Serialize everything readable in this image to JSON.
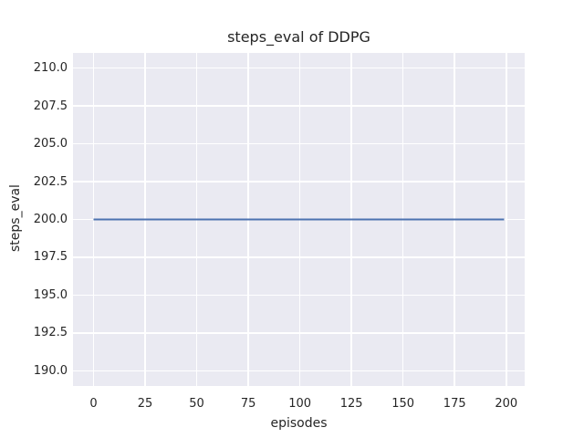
{
  "figure": {
    "background_color": "#ffffff",
    "plot_background_color": "#eaeaf2",
    "grid_color": "#ffffff",
    "text_color": "#262626"
  },
  "chart_data": {
    "type": "line",
    "title": "steps_eval of DDPG",
    "xlabel": "episodes",
    "ylabel": "steps_eval",
    "x_ticks": [
      0,
      25,
      50,
      75,
      100,
      125,
      150,
      175,
      200
    ],
    "y_ticks": [
      190.0,
      192.5,
      195.0,
      197.5,
      200.0,
      202.5,
      205.0,
      207.5,
      210.0
    ],
    "y_tick_labels": [
      "190.0",
      "192.5",
      "195.0",
      "197.5",
      "200.0",
      "202.5",
      "205.0",
      "207.5",
      "210.0"
    ],
    "x_tick_labels": [
      "0",
      "25",
      "50",
      "75",
      "100",
      "125",
      "150",
      "175",
      "200"
    ],
    "xlim": [
      -9.95,
      208.95
    ],
    "ylim": [
      189.0,
      211.0
    ],
    "grid": true,
    "legend": "none",
    "series": [
      {
        "name": "steps_eval",
        "color": "#4c72b0",
        "line_width": 2,
        "x": [
          0,
          199
        ],
        "y": [
          200.0,
          200.0
        ]
      }
    ]
  }
}
